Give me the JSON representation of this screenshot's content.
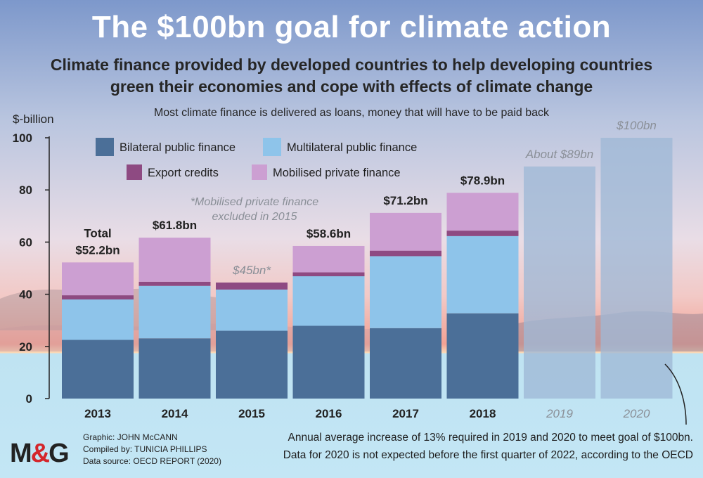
{
  "title": "The $100bn goal for climate action",
  "subtitle_lines": [
    "Climate finance provided by developed countries to help developing countries",
    "green their economies and cope with effects of climate change"
  ],
  "note": "Most climate finance is delivered as loans, money that will have to be paid back",
  "credits": {
    "graphic": "Graphic: JOHN McCANN",
    "compiled": "Compiled by: TUNICIA PHILLIPS",
    "source": "Data source: OECD REPORT (2020)"
  },
  "logo": {
    "left": "M",
    "amp": "&",
    "right": "G"
  },
  "footnote_lines": [
    "Annual average increase of 13% required in 2019 and 2020 to meet goal of $100bn.",
    "Data for 2020 is not expected before the first quarter of 2022, according to the OECD"
  ],
  "colors": {
    "bilateral": "#4b6f98",
    "multilateral": "#8ec4ea",
    "export": "#8e4a82",
    "private": "#cc9fd2",
    "target": "#9fb9d6",
    "sky_top": "#7e99cb",
    "sea": "#bfe3f2",
    "gray_label": "#8a8f97"
  },
  "chart_data": {
    "type": "bar",
    "stacked": true,
    "ylabel": "$-billion",
    "ylim": [
      0,
      100
    ],
    "yticks": [
      0,
      20,
      40,
      60,
      80,
      100
    ],
    "categories": [
      "2013",
      "2014",
      "2015",
      "2016",
      "2017",
      "2018",
      "2019",
      "2020"
    ],
    "series": [
      {
        "name": "Bilateral public finance",
        "color_key": "bilateral",
        "values": [
          22.5,
          23.1,
          26.0,
          27.9,
          27.0,
          32.7,
          null,
          null
        ]
      },
      {
        "name": "Multilateral public finance",
        "color_key": "multilateral",
        "values": [
          15.5,
          20.1,
          15.8,
          19.0,
          27.6,
          29.6,
          null,
          null
        ]
      },
      {
        "name": "Export credits",
        "color_key": "export",
        "values": [
          1.6,
          1.6,
          2.7,
          1.5,
          2.1,
          2.1,
          null,
          null
        ]
      },
      {
        "name": "Mobilised private finance",
        "color_key": "private",
        "values": [
          12.6,
          16.9,
          null,
          10.1,
          14.5,
          14.5,
          null,
          null
        ]
      }
    ],
    "target_bars": [
      {
        "category": "2019",
        "value": 89,
        "label": "About $89bn"
      },
      {
        "category": "2020",
        "value": 100,
        "label": "$100bn"
      }
    ],
    "total_labels": [
      {
        "category": "2013",
        "lines": [
          "Total",
          "$52.2bn"
        ],
        "style": "normal"
      },
      {
        "category": "2014",
        "lines": [
          "$61.8bn"
        ],
        "style": "normal"
      },
      {
        "category": "2015",
        "lines": [
          "$45bn*"
        ],
        "style": "italic"
      },
      {
        "category": "2016",
        "lines": [
          "$58.6bn"
        ],
        "style": "normal"
      },
      {
        "category": "2017",
        "lines": [
          "$71.2bn"
        ],
        "style": "normal"
      },
      {
        "category": "2018",
        "lines": [
          "$78.9bn"
        ],
        "style": "normal"
      }
    ],
    "annotation": [
      "*Mobilised private finance",
      "excluded in 2015"
    ],
    "legend_rows": [
      [
        "Bilateral public finance",
        "Multilateral public finance"
      ],
      [
        "Export credits",
        "Mobilised private finance"
      ]
    ],
    "legend_position": "top-left",
    "grid": false
  }
}
